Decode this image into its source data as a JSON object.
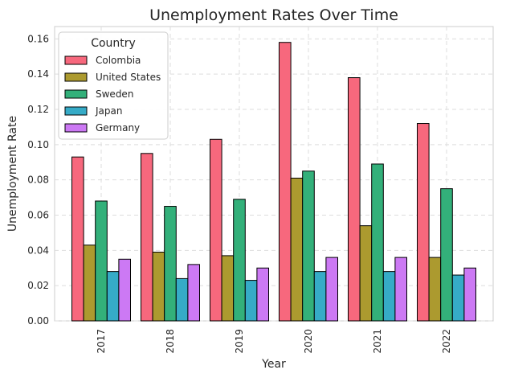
{
  "chart_data": {
    "type": "bar",
    "title": "Unemployment Rates Over Time",
    "xlabel": "Year",
    "ylabel": "Unemployment Rate",
    "categories": [
      "2017",
      "2018",
      "2019",
      "2020",
      "2021",
      "2022"
    ],
    "ylim": [
      0,
      0.167
    ],
    "yticks": [
      "0.00",
      "0.02",
      "0.04",
      "0.06",
      "0.08",
      "0.10",
      "0.12",
      "0.14",
      "0.16"
    ],
    "grid": true,
    "legend_title": "Country",
    "legend_position": "top-left",
    "series": [
      {
        "name": "Colombia",
        "color": "#f7687d",
        "values": [
          0.093,
          0.095,
          0.103,
          0.158,
          0.138,
          0.112
        ]
      },
      {
        "name": "United States",
        "color": "#ac9a2f",
        "values": [
          0.043,
          0.039,
          0.037,
          0.081,
          0.054,
          0.036
        ]
      },
      {
        "name": "Sweden",
        "color": "#33b07a",
        "values": [
          0.068,
          0.065,
          0.069,
          0.085,
          0.089,
          0.075
        ]
      },
      {
        "name": "Japan",
        "color": "#36abc7",
        "values": [
          0.028,
          0.024,
          0.023,
          0.028,
          0.028,
          0.026
        ]
      },
      {
        "name": "Germany",
        "color": "#cc79f4",
        "values": [
          0.035,
          0.032,
          0.03,
          0.036,
          0.036,
          0.03
        ]
      }
    ]
  }
}
